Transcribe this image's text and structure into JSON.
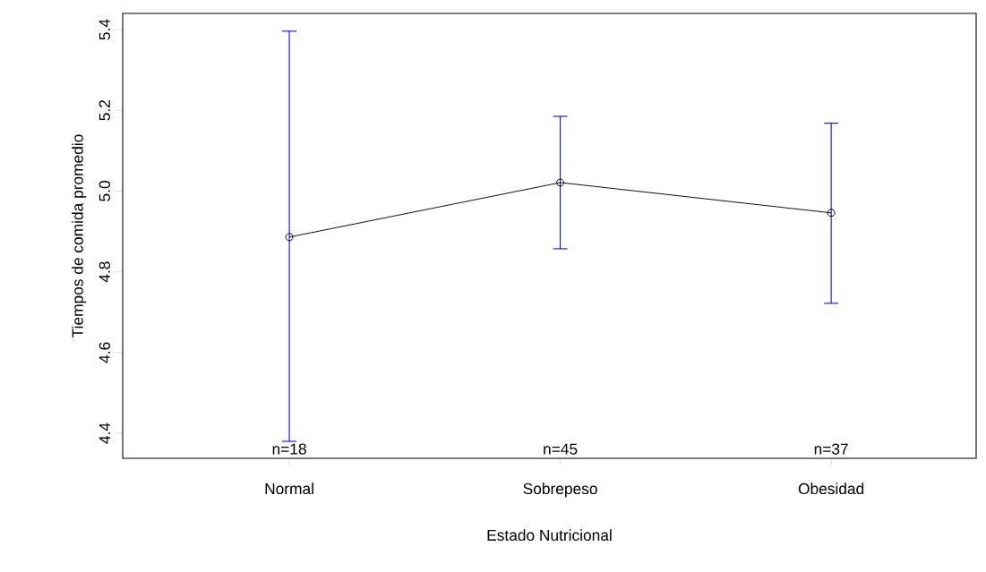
{
  "chart_data": {
    "type": "line",
    "xlabel": "Estado Nutricional",
    "ylabel": "Tiempos de comida promedio",
    "categories": [
      "Normal",
      "Sobrepeso",
      "Obesidad"
    ],
    "series": [
      {
        "color": "#000000",
        "values": [
          4.886,
          5.021,
          4.946
        ],
        "errors": [
          [
            4.38,
            5.396
          ],
          [
            4.857,
            5.185
          ],
          [
            4.722,
            5.168
          ]
        ]
      }
    ],
    "ylim": [
      4.338,
      5.44
    ],
    "yticks": [
      {
        "value": 4.4,
        "label": "4.4"
      },
      {
        "value": 4.6,
        "label": "4.6"
      },
      {
        "value": 4.8,
        "label": "4.8"
      },
      {
        "value": 5.0,
        "label": "5.0"
      },
      {
        "value": 5.2,
        "label": "5.2"
      },
      {
        "value": 5.4,
        "label": "5.4"
      }
    ],
    "annotations": [
      "n=18",
      "n=45",
      "n=37"
    ],
    "marker": "circle",
    "line_style": "solid"
  }
}
